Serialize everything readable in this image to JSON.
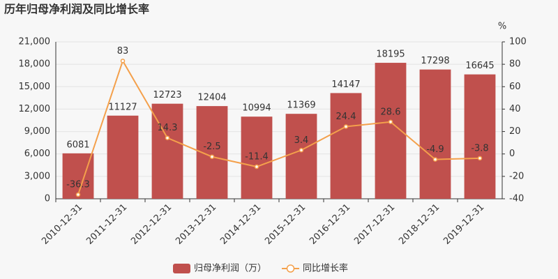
{
  "chart_data": {
    "type": "bar",
    "title": "历年归母净利润及同比增长率",
    "categories": [
      "2010-12-31",
      "2011-12-31",
      "2012-12-31",
      "2013-12-31",
      "2014-12-31",
      "2015-12-31",
      "2016-12-31",
      "2017-12-31",
      "2018-12-31",
      "2019-12-31"
    ],
    "series": [
      {
        "name": "归母净利润（万）",
        "type": "bar",
        "color": "#c0504d",
        "values": [
          6081,
          11127,
          12723,
          12404,
          10994,
          11369,
          14147,
          18195,
          17298,
          16645
        ]
      },
      {
        "name": "同比增长率",
        "type": "line",
        "axis": "y2",
        "color": "#f4a04b",
        "values": [
          -36.3,
          83,
          14.3,
          -2.5,
          -11.4,
          3.4,
          24.4,
          28.6,
          -4.9,
          -3.8
        ]
      }
    ],
    "ylim": [
      0,
      21000
    ],
    "yticks": [
      0,
      {
        "value": 3000,
        "label": "3,000"
      },
      {
        "value": 6000,
        "label": "6,000"
      },
      {
        "value": 9000,
        "label": "9,000"
      },
      {
        "value": 12000,
        "label": "12,000"
      },
      {
        "value": 15000,
        "label": "15,000"
      },
      {
        "value": 18000,
        "label": "18,000"
      },
      {
        "value": 21000,
        "label": "21,000"
      }
    ],
    "y2label": "%",
    "y2lim": [
      -40,
      100
    ],
    "y2ticks": [
      -40,
      -20,
      0,
      20,
      40,
      60,
      80,
      100
    ],
    "grid": true,
    "legend": "bottom"
  }
}
